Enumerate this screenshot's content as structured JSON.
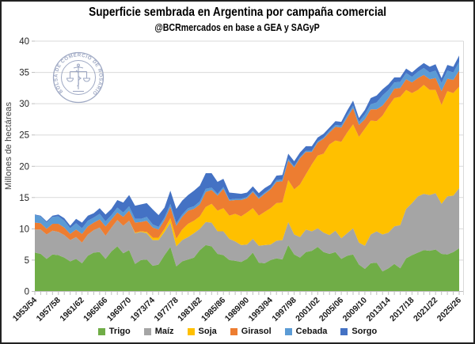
{
  "title": "Superficie sembrada en Argentina por campaña comercial",
  "subtitle": "@BCRmercados en base a GEA y SAGyP",
  "logo": {
    "text": "BOLSA DE COMERCIO DE ROSARIO",
    "color": "#8F9BBA"
  },
  "colors": {
    "grid": "#D9D9D9",
    "axis": "#BFBFBF",
    "tick_text": "#262626",
    "background": "#FFFFFF",
    "border": "#222222"
  },
  "chart_data": {
    "type": "area",
    "stacked": true,
    "title": "Superficie sembrada en Argentina por campaña comercial",
    "subtitle": "@BCRmercados en base a GEA y SAGyP",
    "xlabel": "",
    "ylabel": "Millones de hectáreas",
    "ylim": [
      0,
      40
    ],
    "ytick_interval": 5,
    "grid": true,
    "legend_position": "bottom",
    "x_first_campaign": "1953/54",
    "x_last_campaign": "2025/26",
    "n_points": 73,
    "x_tick_labels": [
      "1953/54",
      "1957/58",
      "1961/62",
      "1965/66",
      "1969/70",
      "1973/74",
      "1977/78",
      "1981/82",
      "1985/86",
      "1989/90",
      "1993/94",
      "1997/98",
      "2001/02",
      "2005/06",
      "2009/10",
      "2013/14",
      "2017/18",
      "2021/22",
      "2025/26"
    ],
    "x_tick_label_every": 4,
    "units": "millones de hectáreas",
    "series": [
      {
        "name": "Trigo",
        "color": "#70AD47",
        "values": [
          6.2,
          6.0,
          5.2,
          5.9,
          5.8,
          5.4,
          4.8,
          5.2,
          4.5,
          5.7,
          6.2,
          6.3,
          5.2,
          6.4,
          7.2,
          6.1,
          6.6,
          4.4,
          5.0,
          5.1,
          4.1,
          4.3,
          5.8,
          7.1,
          4.0,
          4.8,
          5.1,
          5.4,
          6.6,
          7.4,
          7.2,
          6.0,
          5.8,
          5.0,
          4.9,
          4.7,
          5.2,
          6.2,
          4.6,
          4.5,
          5.0,
          5.3,
          5.1,
          7.4,
          5.9,
          5.4,
          6.3,
          6.5,
          7.1,
          6.3,
          6.0,
          6.3,
          5.2,
          5.7,
          5.9,
          4.3,
          3.6,
          4.5,
          4.6,
          3.2,
          3.7,
          4.4,
          3.7,
          5.3,
          5.8,
          6.2,
          6.6,
          6.5,
          6.7,
          6.0,
          5.9,
          6.3,
          6.9
        ]
      },
      {
        "name": "Maíz",
        "color": "#A5A5A5",
        "values": [
          3.7,
          3.9,
          3.9,
          3.8,
          3.7,
          3.6,
          3.4,
          3.5,
          3.3,
          3.4,
          3.6,
          3.9,
          3.7,
          3.8,
          4.2,
          4.4,
          4.7,
          4.9,
          4.5,
          4.2,
          4.1,
          3.9,
          3.7,
          3.9,
          3.2,
          3.4,
          3.6,
          3.9,
          3.4,
          3.7,
          3.8,
          3.6,
          3.8,
          3.4,
          3.1,
          2.7,
          2.3,
          2.2,
          2.7,
          2.9,
          2.5,
          2.8,
          3.1,
          3.7,
          3.2,
          3.3,
          3.6,
          3.1,
          3.0,
          3.1,
          3.0,
          3.4,
          3.3,
          3.6,
          4.2,
          3.5,
          3.7,
          4.6,
          5.0,
          5.9,
          5.7,
          6.0,
          6.9,
          7.9,
          8.3,
          9.0,
          9.0,
          8.9,
          9.0,
          8.0,
          9.3,
          9.0,
          9.6
        ]
      },
      {
        "name": "Soja",
        "color": "#FFC000",
        "values": [
          0,
          0,
          0,
          0,
          0,
          0,
          0,
          0,
          0,
          0,
          0,
          0,
          0,
          0,
          0,
          0,
          0,
          0.1,
          0.1,
          0.2,
          0.4,
          0.4,
          0.5,
          0.7,
          1.2,
          1.7,
          2.1,
          2.0,
          2.0,
          2.4,
          3.0,
          3.3,
          3.7,
          3.7,
          4.4,
          4.6,
          5.1,
          4.9,
          4.8,
          5.3,
          5.8,
          6.0,
          6.0,
          6.7,
          7.2,
          8.4,
          8.8,
          10.7,
          11.6,
          12.6,
          14.5,
          14.4,
          15.4,
          16.1,
          16.6,
          16.9,
          18.7,
          18.2,
          17.6,
          19.0,
          20.2,
          20.5,
          20.5,
          19.0,
          17.6,
          17.0,
          17.4,
          16.8,
          16.5,
          15.8,
          16.8,
          16.4,
          16.2
        ]
      },
      {
        "name": "Girasol",
        "color": "#ED7D31",
        "values": [
          1.1,
          1.0,
          0.9,
          1.1,
          1.3,
          1.2,
          1.0,
          1.2,
          1.4,
          1.3,
          1.2,
          1.3,
          1.5,
          1.3,
          1.2,
          1.4,
          1.6,
          1.6,
          1.5,
          1.8,
          1.6,
          1.3,
          1.4,
          1.8,
          2.1,
          2.0,
          2.1,
          1.9,
          1.9,
          2.4,
          2.2,
          2.4,
          3.1,
          2.4,
          2.2,
          2.6,
          2.3,
          2.6,
          2.7,
          2.9,
          3.0,
          3.4,
          3.4,
          3.1,
          3.5,
          4.2,
          3.6,
          2.0,
          2.1,
          2.4,
          1.9,
          2.2,
          2.3,
          2.4,
          2.6,
          1.9,
          1.5,
          1.8,
          1.9,
          1.6,
          1.3,
          1.5,
          1.4,
          1.7,
          1.7,
          1.9,
          1.6,
          1.7,
          1.9,
          2.2,
          2.0,
          2.1,
          2.6
        ]
      },
      {
        "name": "Cebada",
        "color": "#5B9BD5",
        "values": [
          1.2,
          1.1,
          1.0,
          1.1,
          1.2,
          1.1,
          0.9,
          1.0,
          0.9,
          0.9,
          0.8,
          0.9,
          0.8,
          0.7,
          0.8,
          0.7,
          0.7,
          0.6,
          0.5,
          0.6,
          0.5,
          0.4,
          0.4,
          0.5,
          0.4,
          0.4,
          0.4,
          0.4,
          0.5,
          0.5,
          0.4,
          0.3,
          0.3,
          0.2,
          0.2,
          0.2,
          0.2,
          0.2,
          0.2,
          0.2,
          0.2,
          0.3,
          0.3,
          0.3,
          0.2,
          0.2,
          0.2,
          0.2,
          0.2,
          0.2,
          0.3,
          0.3,
          0.3,
          0.4,
          0.4,
          0.5,
          0.8,
          0.8,
          1.1,
          1.6,
          1.3,
          1.0,
          1.0,
          1.0,
          0.9,
          1.0,
          1.1,
          1.1,
          1.2,
          1.3,
          1.3,
          1.2,
          1.4
        ]
      },
      {
        "name": "Sorgo",
        "color": "#4472C4",
        "values": [
          0.1,
          0.1,
          0.2,
          0.2,
          0.3,
          0.4,
          0.4,
          0.7,
          0.9,
          0.8,
          0.7,
          0.9,
          1.1,
          1.0,
          1.2,
          1.6,
          1.8,
          2.1,
          2.3,
          2.2,
          2.4,
          1.9,
          1.6,
          2.1,
          2.3,
          2.2,
          2.1,
          2.5,
          2.5,
          2.5,
          2.3,
          1.9,
          1.3,
          1.1,
          0.9,
          0.8,
          0.7,
          0.7,
          0.7,
          0.7,
          0.6,
          0.7,
          0.7,
          0.8,
          0.8,
          0.7,
          0.7,
          0.7,
          0.6,
          0.6,
          0.5,
          0.6,
          0.6,
          0.7,
          0.8,
          0.6,
          0.7,
          1.0,
          1.1,
          1.0,
          0.9,
          0.8,
          0.7,
          0.7,
          0.7,
          0.7,
          0.8,
          0.9,
          1.0,
          0.8,
          0.9,
          0.9,
          1.0
        ]
      }
    ]
  }
}
